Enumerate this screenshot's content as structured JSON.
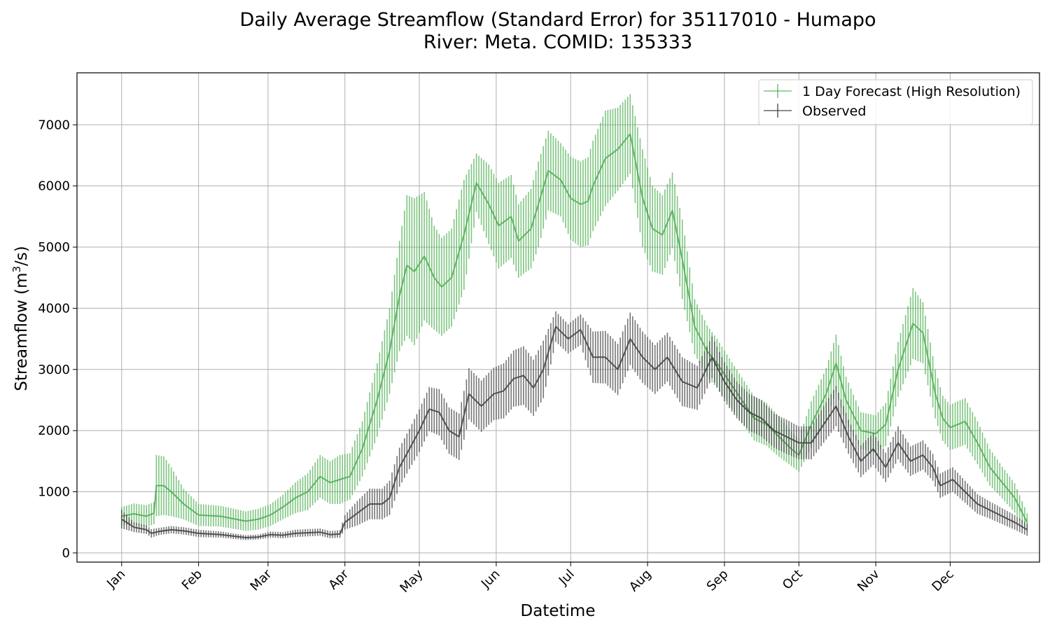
{
  "title_line1": "Daily Average Streamflow (Standard Error) for 35117010 - Humapo",
  "title_line2": "River: Meta. COMID: 135333",
  "colors": {
    "forecast": "#4caf50",
    "observed": "#404040",
    "grid": "#b0b0b0"
  },
  "chart_data": {
    "type": "line",
    "title": "Daily Average Streamflow (Standard Error) for 35117010 - Humapo River: Meta. COMID: 135333",
    "xlabel": "Datetime",
    "ylabel_main": "Streamflow (m",
    "ylabel_sup": "3",
    "ylabel_tail": "/s)",
    "xlim": [
      -18,
      370
    ],
    "ylim": [
      -150,
      7850
    ],
    "yticks": [
      0,
      1000,
      2000,
      3000,
      4000,
      5000,
      6000,
      7000
    ],
    "ytick_labels": [
      "0",
      "1000",
      "2000",
      "3000",
      "4000",
      "5000",
      "6000",
      "7000"
    ],
    "xticks": [
      0,
      31,
      59,
      90,
      120,
      151,
      181,
      212,
      243,
      273,
      304,
      334
    ],
    "xtick_labels": [
      "Jan",
      "Feb",
      "Mar",
      "Apr",
      "May",
      "Jun",
      "Jul",
      "Aug",
      "Sep",
      "Oct",
      "Nov",
      "Dec"
    ],
    "grid": true,
    "legend_position": "top-right",
    "series": [
      {
        "name": "1 Day Forecast (High Resolution)",
        "x": [
          0,
          5,
          10,
          13,
          14,
          17,
          20,
          25,
          31,
          40,
          50,
          55,
          60,
          65,
          70,
          75,
          80,
          84,
          88,
          92,
          97,
          103,
          108,
          112,
          115,
          118,
          122,
          126,
          129,
          133,
          138,
          143,
          148,
          152,
          157,
          160,
          165,
          168,
          172,
          177,
          181,
          185,
          188,
          190,
          195,
          200,
          205,
          210,
          214,
          218,
          222,
          226,
          231,
          236,
          240,
          245,
          250,
          255,
          260,
          265,
          270,
          273,
          278,
          284,
          288,
          292,
          298,
          304,
          308,
          313,
          319,
          323,
          328,
          331,
          334,
          337,
          340,
          345,
          350,
          355,
          360,
          365
        ],
        "y": [
          600,
          640,
          600,
          650,
          1100,
          1100,
          1000,
          800,
          620,
          600,
          520,
          550,
          620,
          750,
          900,
          1000,
          1250,
          1150,
          1200,
          1250,
          1700,
          2500,
          3300,
          4200,
          4700,
          4600,
          4850,
          4500,
          4350,
          4500,
          5200,
          6050,
          5700,
          5350,
          5500,
          5100,
          5300,
          5700,
          6250,
          6100,
          5800,
          5700,
          5750,
          6000,
          6450,
          6600,
          6850,
          5800,
          5300,
          5200,
          5600,
          4800,
          3700,
          3300,
          3100,
          2800,
          2500,
          2200,
          2100,
          1900,
          1700,
          1600,
          2100,
          2600,
          3100,
          2500,
          2000,
          1950,
          2100,
          3000,
          3750,
          3600,
          2600,
          2200,
          2050,
          2100,
          2150,
          1800,
          1400,
          1150,
          900,
          500
        ],
        "err": [
          150,
          170,
          180,
          180,
          500,
          480,
          400,
          250,
          180,
          170,
          160,
          170,
          180,
          200,
          250,
          300,
          350,
          350,
          400,
          380,
          450,
          600,
          700,
          900,
          1150,
          1200,
          1050,
          850,
          800,
          800,
          900,
          480,
          650,
          700,
          680,
          600,
          650,
          700,
          650,
          600,
          680,
          700,
          720,
          740,
          780,
          680,
          650,
          800,
          700,
          650,
          620,
          650,
          450,
          420,
          400,
          380,
          370,
          360,
          350,
          330,
          280,
          270,
          380,
          420,
          470,
          380,
          300,
          300,
          350,
          450,
          580,
          500,
          400,
          370,
          370,
          380,
          380,
          350,
          300,
          260,
          240,
          150
        ]
      },
      {
        "name": "Observed",
        "x": [
          0,
          5,
          10,
          12,
          15,
          20,
          25,
          31,
          40,
          50,
          55,
          60,
          65,
          70,
          75,
          80,
          84,
          88,
          90,
          95,
          100,
          105,
          108,
          112,
          116,
          120,
          124,
          128,
          132,
          136,
          140,
          145,
          150,
          154,
          158,
          162,
          166,
          170,
          175,
          180,
          185,
          190,
          195,
          200,
          205,
          210,
          215,
          220,
          226,
          232,
          238,
          243,
          248,
          253,
          258,
          263,
          268,
          273,
          278,
          283,
          288,
          293,
          298,
          303,
          308,
          313,
          318,
          323,
          327,
          330,
          335,
          340,
          345,
          350,
          355,
          360,
          365
        ],
        "y": [
          550,
          420,
          380,
          320,
          350,
          380,
          360,
          320,
          300,
          250,
          260,
          300,
          290,
          320,
          330,
          340,
          300,
          310,
          500,
          650,
          800,
          800,
          900,
          1400,
          1700,
          2000,
          2350,
          2300,
          2000,
          1900,
          2600,
          2400,
          2600,
          2650,
          2850,
          2900,
          2700,
          3000,
          3700,
          3500,
          3650,
          3200,
          3200,
          3000,
          3500,
          3200,
          3000,
          3200,
          2800,
          2700,
          3200,
          2800,
          2500,
          2300,
          2200,
          2000,
          1900,
          1800,
          1800,
          2100,
          2400,
          1900,
          1500,
          1700,
          1400,
          1800,
          1500,
          1600,
          1400,
          1100,
          1200,
          1000,
          800,
          700,
          600,
          500,
          380
        ],
        "err": [
          150,
          80,
          70,
          70,
          60,
          60,
          60,
          60,
          50,
          40,
          40,
          50,
          50,
          60,
          60,
          60,
          60,
          60,
          120,
          200,
          250,
          250,
          280,
          320,
          330,
          350,
          360,
          380,
          380,
          380,
          420,
          420,
          430,
          450,
          460,
          480,
          460,
          470,
          250,
          240,
          250,
          420,
          430,
          420,
          430,
          420,
          400,
          400,
          400,
          360,
          340,
          320,
          300,
          300,
          300,
          280,
          280,
          270,
          270,
          300,
          330,
          280,
          260,
          260,
          240,
          270,
          240,
          240,
          220,
          200,
          200,
          180,
          160,
          140,
          130,
          120,
          100
        ]
      }
    ]
  }
}
